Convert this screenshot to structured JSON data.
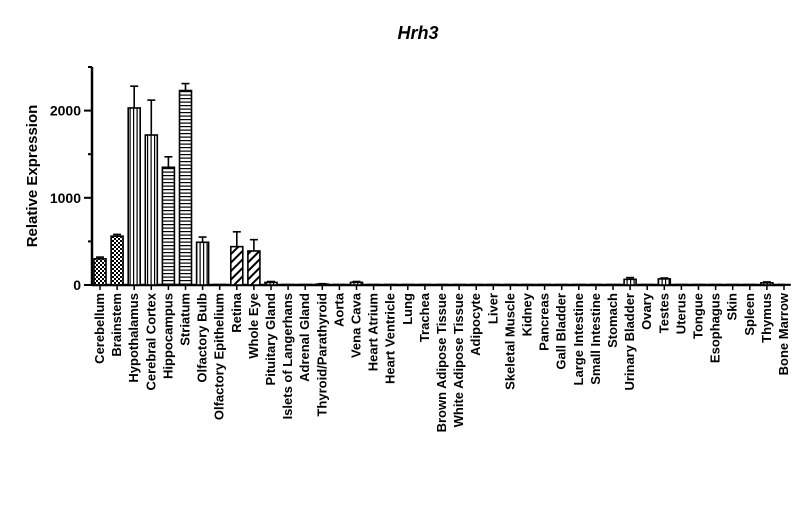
{
  "chart_data": {
    "type": "bar",
    "title": "Hrh3",
    "xlabel": "",
    "ylabel": "Relative Expression",
    "ylim": [
      0,
      2500
    ],
    "yticks": [
      "0",
      "1000",
      "2000"
    ],
    "categories": [
      "Cerebellum",
      "Brainstem",
      "Hypothalamus",
      "Cerebral Cortex",
      "Hippocampus",
      "Striatum",
      "Olfactory Bulb",
      "Olfactory Epithelium",
      "Retina",
      "Whole Eye",
      "Pituitary Gland",
      "Islets of Langerhans",
      "Adrenal Gland",
      "Thyroid/Parathyroid",
      "Aorta",
      "Vena Cava",
      "Heart Atrium",
      "Heart Ventricle",
      "Lung",
      "Trachea",
      "Brown Adipose Tissue",
      "White Adipose Tissue",
      "Adipocyte",
      "Liver",
      "Skeletal Muscle",
      "Kidney",
      "Pancreas",
      "Gall Bladder",
      "Large Intestine",
      "Small Intestine",
      "Stomach",
      "Urinary Bladder",
      "Ovary",
      "Testes",
      "Uterus",
      "Tongue",
      "Esophagus",
      "Skin",
      "Spleen",
      "Thymus",
      "Bone Marrow"
    ],
    "values": [
      300,
      560,
      2030,
      1720,
      1350,
      2230,
      490,
      5,
      440,
      390,
      30,
      5,
      5,
      10,
      5,
      30,
      5,
      5,
      5,
      5,
      5,
      5,
      5,
      5,
      5,
      5,
      5,
      5,
      5,
      5,
      5,
      65,
      5,
      70,
      5,
      5,
      5,
      5,
      5,
      25,
      5
    ],
    "errors": [
      20,
      20,
      250,
      400,
      120,
      80,
      60,
      0,
      170,
      130,
      10,
      0,
      0,
      5,
      0,
      10,
      0,
      0,
      0,
      0,
      0,
      0,
      0,
      0,
      0,
      0,
      0,
      0,
      0,
      0,
      0,
      20,
      0,
      10,
      0,
      0,
      0,
      0,
      0,
      10,
      0
    ],
    "patterns": [
      "check",
      "check",
      "vert",
      "vert",
      "horiz",
      "horiz",
      "vert",
      "vert",
      "diag",
      "diag",
      "vert",
      "vert",
      "vert",
      "vert",
      "vert",
      "vert",
      "vert",
      "vert",
      "vert",
      "vert",
      "vert",
      "vert",
      "vert",
      "vert",
      "vert",
      "vert",
      "vert",
      "vert",
      "vert",
      "vert",
      "vert",
      "vert",
      "vert",
      "vert",
      "vert",
      "vert",
      "vert",
      "vert",
      "vert",
      "vert",
      "vert"
    ],
    "grid": false,
    "legend": "none"
  }
}
